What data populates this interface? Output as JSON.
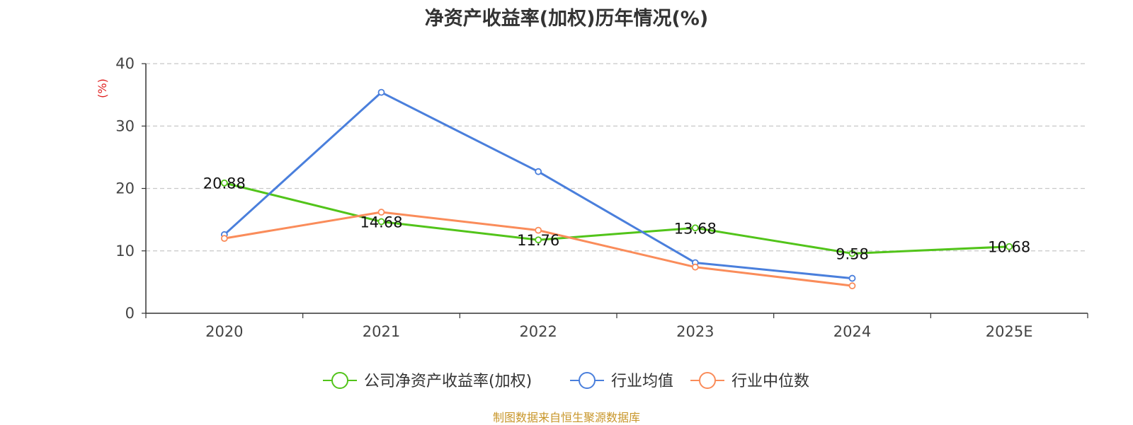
{
  "chart_data": {
    "type": "line",
    "title": "净资产收益率(加权)历年情况(%)",
    "ylabel": "(%)",
    "xlabel": "",
    "categories": [
      "2020",
      "2021",
      "2022",
      "2023",
      "2024",
      "2025E"
    ],
    "ylim": [
      0,
      40
    ],
    "yticks": [
      0,
      10,
      20,
      30,
      40
    ],
    "grid": true,
    "legend_position": "bottom",
    "series": [
      {
        "name": "公司净资产收益率(加权)",
        "color": "#52c41a",
        "values": [
          20.88,
          14.68,
          11.76,
          13.68,
          9.58,
          10.68
        ],
        "labels": [
          "20.88",
          "14.68",
          "11.76",
          "13.68",
          "9.58",
          "10.68"
        ]
      },
      {
        "name": "行业均值",
        "color": "#4a7fdc",
        "values": [
          12.6,
          35.4,
          22.7,
          8.1,
          5.6,
          null
        ]
      },
      {
        "name": "行业中位数",
        "color": "#fa8c5a",
        "values": [
          12.0,
          16.2,
          13.3,
          7.4,
          4.4,
          null
        ]
      }
    ]
  },
  "source_text": "制图数据来自恒生聚源数据库"
}
